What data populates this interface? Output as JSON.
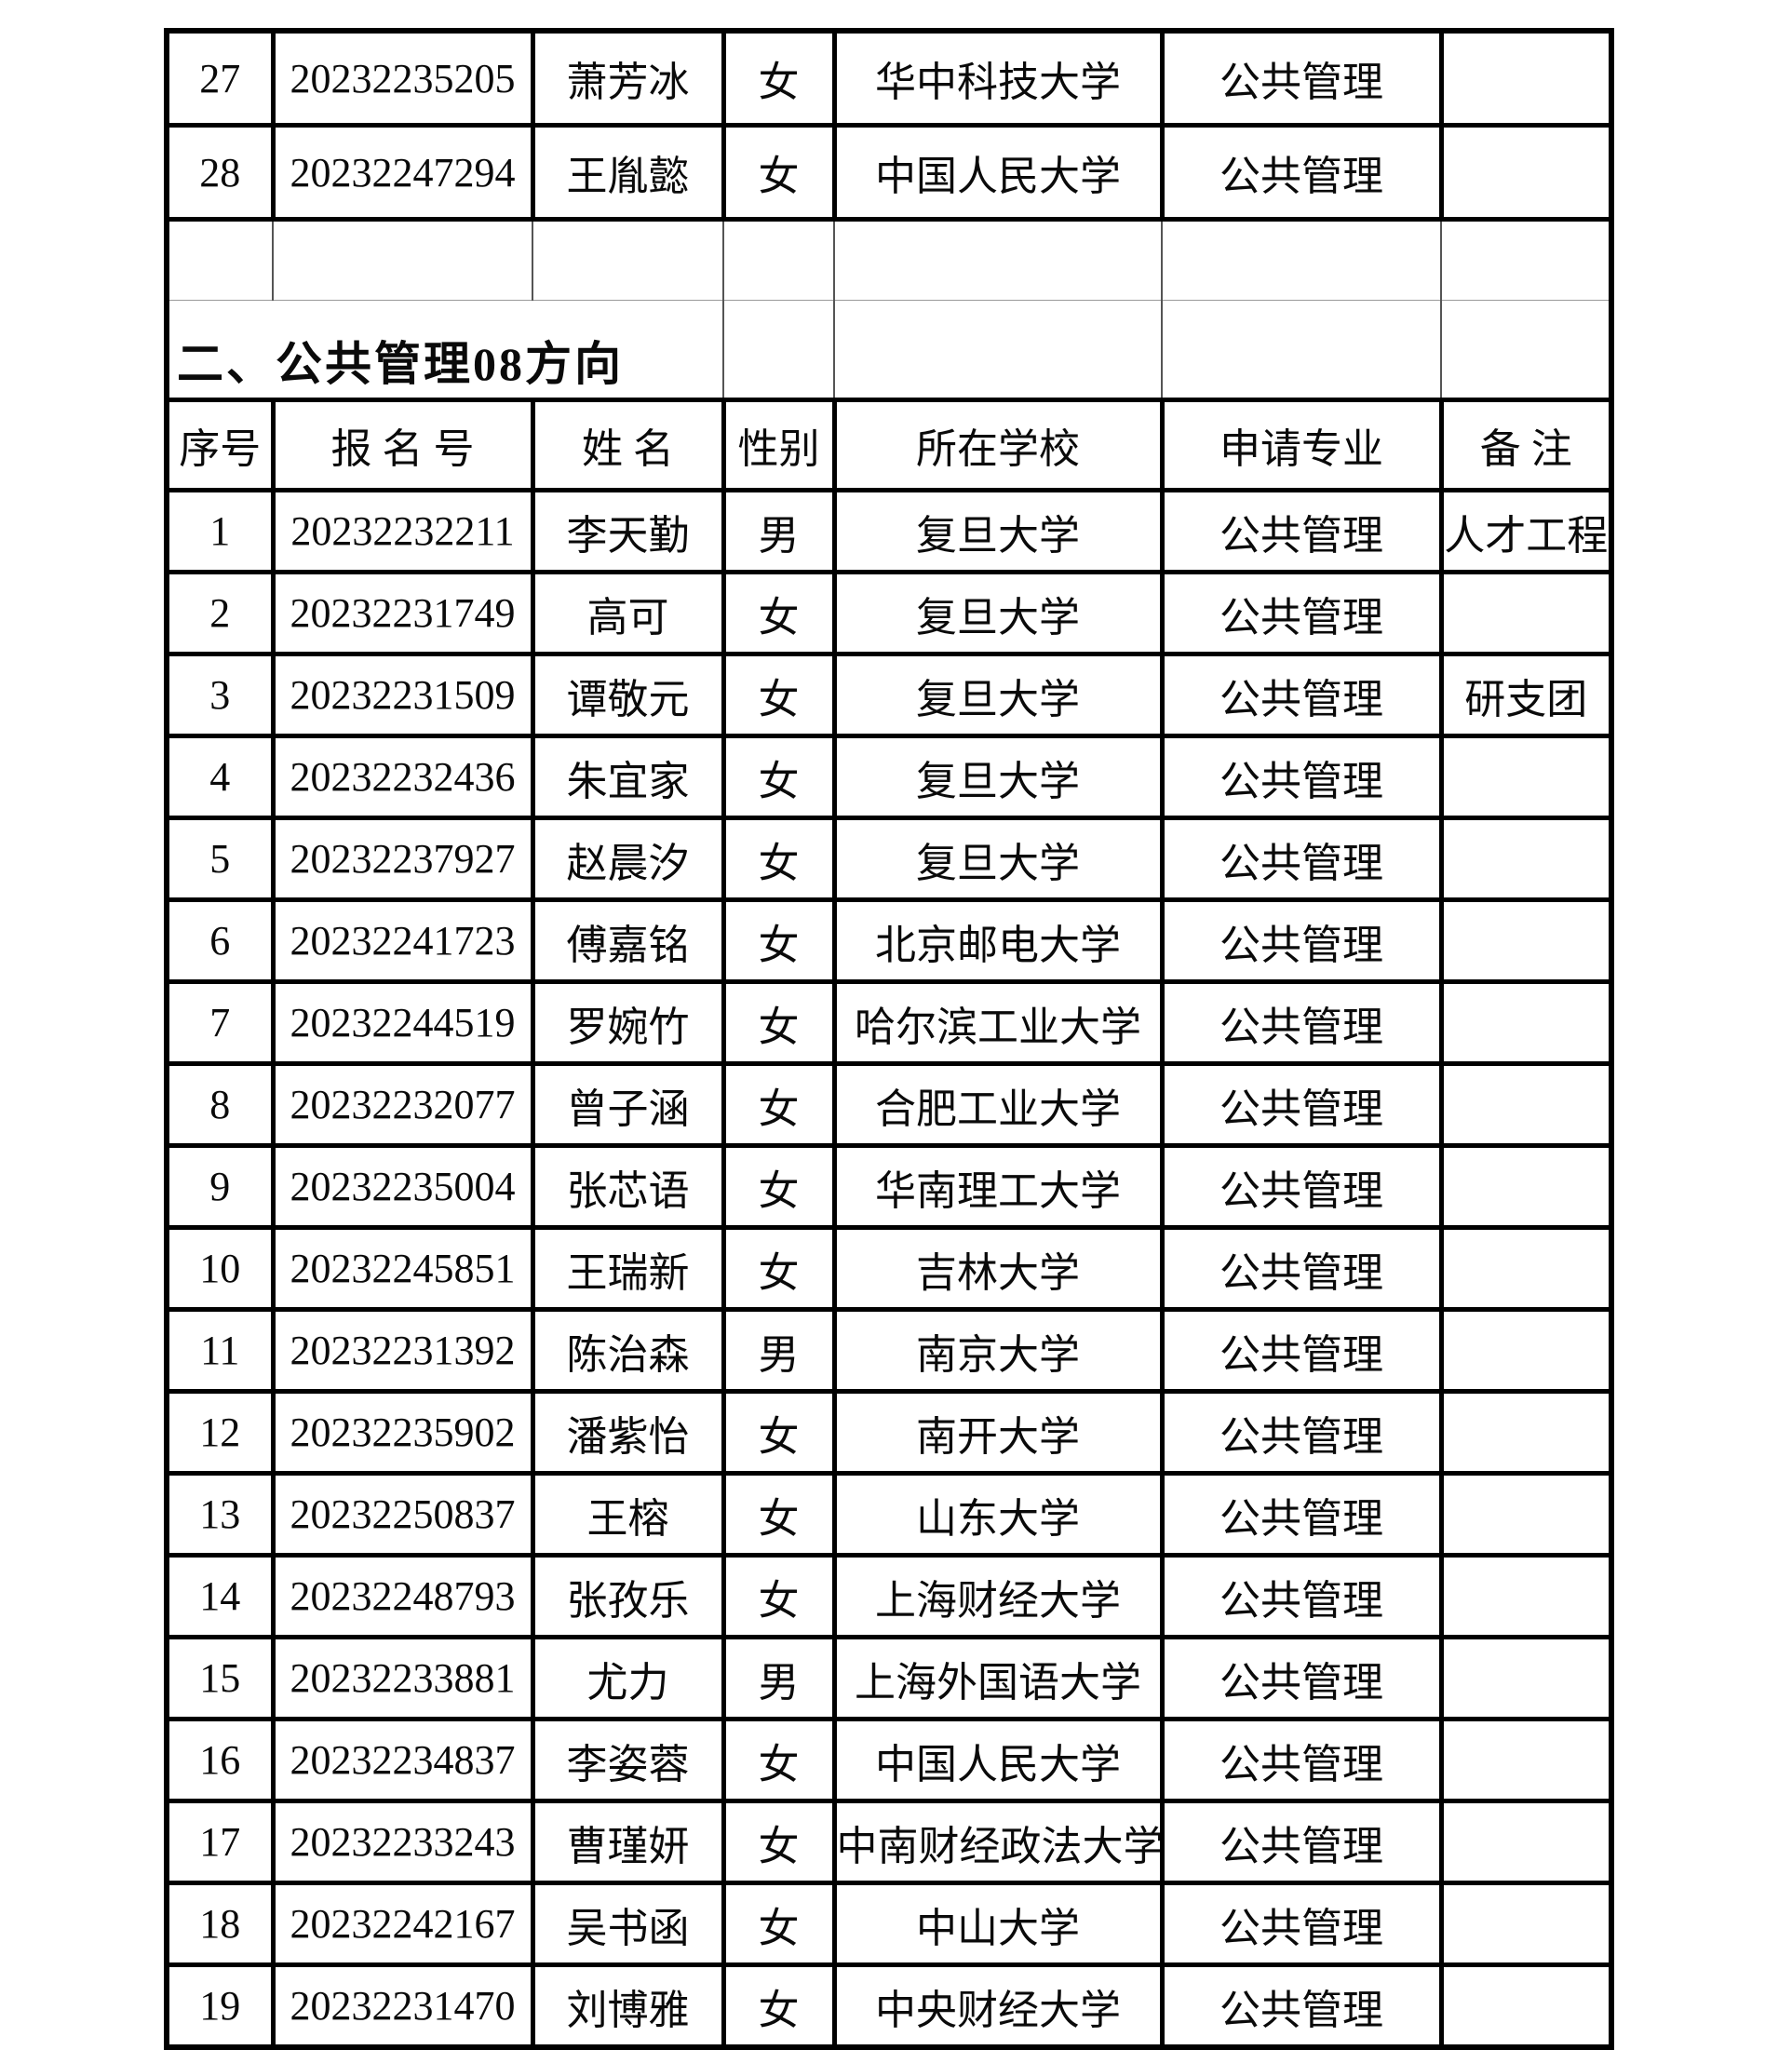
{
  "page": {
    "background": "#ffffff",
    "text_color": "#0a0a0a",
    "border_color": "#000000",
    "thin_line_color": "#9a9a9a"
  },
  "table": {
    "columns": [
      "序号",
      "报 名 号",
      "姓 名",
      "性别",
      "所在学校",
      "申请专业",
      "备 注"
    ],
    "continuation_rows": [
      [
        "27",
        "20232235205",
        "萧芳冰",
        "女",
        "华中科技大学",
        "公共管理",
        ""
      ],
      [
        "28",
        "20232247294",
        "王胤懿",
        "女",
        "中国人民大学",
        "公共管理",
        ""
      ]
    ],
    "section_title": "二、公共管理08方向",
    "rows": [
      [
        "1",
        "20232232211",
        "李天勤",
        "男",
        "复旦大学",
        "公共管理",
        "人才工程"
      ],
      [
        "2",
        "20232231749",
        "高可",
        "女",
        "复旦大学",
        "公共管理",
        ""
      ],
      [
        "3",
        "20232231509",
        "谭敬元",
        "女",
        "复旦大学",
        "公共管理",
        "研支团"
      ],
      [
        "4",
        "20232232436",
        "朱宜家",
        "女",
        "复旦大学",
        "公共管理",
        ""
      ],
      [
        "5",
        "20232237927",
        "赵晨汐",
        "女",
        "复旦大学",
        "公共管理",
        ""
      ],
      [
        "6",
        "20232241723",
        "傅嘉铭",
        "女",
        "北京邮电大学",
        "公共管理",
        ""
      ],
      [
        "7",
        "20232244519",
        "罗婉竹",
        "女",
        "哈尔滨工业大学",
        "公共管理",
        ""
      ],
      [
        "8",
        "20232232077",
        "曾子涵",
        "女",
        "合肥工业大学",
        "公共管理",
        ""
      ],
      [
        "9",
        "20232235004",
        "张芯语",
        "女",
        "华南理工大学",
        "公共管理",
        ""
      ],
      [
        "10",
        "20232245851",
        "王瑞新",
        "女",
        "吉林大学",
        "公共管理",
        ""
      ],
      [
        "11",
        "20232231392",
        "陈治森",
        "男",
        "南京大学",
        "公共管理",
        ""
      ],
      [
        "12",
        "20232235902",
        "潘紫怡",
        "女",
        "南开大学",
        "公共管理",
        ""
      ],
      [
        "13",
        "20232250837",
        "王榕",
        "女",
        "山东大学",
        "公共管理",
        ""
      ],
      [
        "14",
        "20232248793",
        "张孜乐",
        "女",
        "上海财经大学",
        "公共管理",
        ""
      ],
      [
        "15",
        "20232233881",
        "尤力",
        "男",
        "上海外国语大学",
        "公共管理",
        ""
      ],
      [
        "16",
        "20232234837",
        "李姿蓉",
        "女",
        "中国人民大学",
        "公共管理",
        ""
      ],
      [
        "17",
        "20232233243",
        "曹瑾妍",
        "女",
        "中南财经政法大学",
        "公共管理",
        ""
      ],
      [
        "18",
        "20232242167",
        "吴书函",
        "女",
        "中山大学",
        "公共管理",
        ""
      ],
      [
        "19",
        "20232231470",
        "刘博雅",
        "女",
        "中央财经大学",
        "公共管理",
        ""
      ]
    ]
  }
}
